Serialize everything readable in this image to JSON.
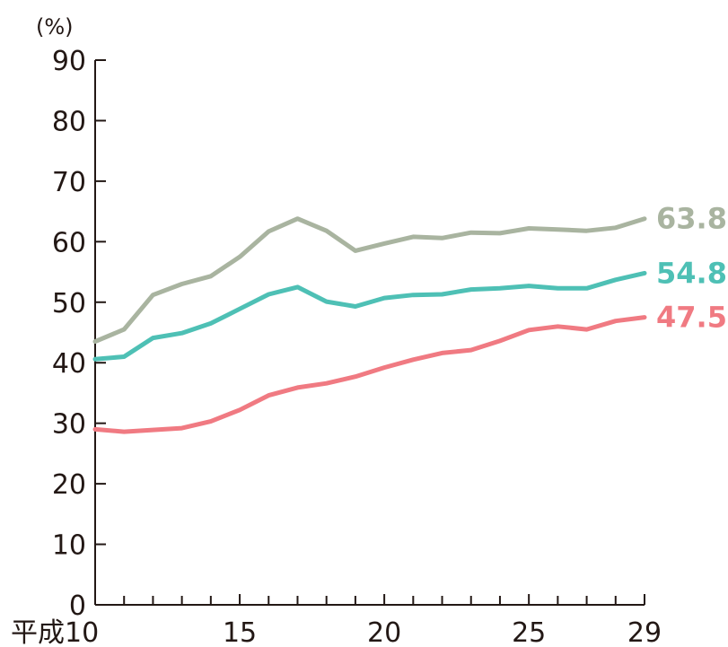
{
  "chart_data": {
    "type": "line",
    "ylabel": "(%)",
    "xlabel": "",
    "title": "",
    "ylim": [
      0,
      90
    ],
    "xlim": [
      10,
      29
    ],
    "yticks": [
      0,
      10,
      20,
      30,
      40,
      50,
      60,
      70,
      80,
      90
    ],
    "xtick_labels": [
      {
        "x": 10,
        "label": "平成10"
      },
      {
        "x": 15,
        "label": "15"
      },
      {
        "x": 20,
        "label": "20"
      },
      {
        "x": 25,
        "label": "25"
      },
      {
        "x": 29,
        "label": "29"
      }
    ],
    "x": [
      10,
      11,
      12,
      13,
      14,
      15,
      16,
      17,
      18,
      19,
      20,
      21,
      22,
      23,
      24,
      25,
      26,
      27,
      28,
      29
    ],
    "grid": false,
    "series": [
      {
        "color": "#a9b4a0",
        "values": [
          43.5,
          45.5,
          51.2,
          53.0,
          54.3,
          57.5,
          61.7,
          63.8,
          61.8,
          58.5,
          59.7,
          60.8,
          60.6,
          61.5,
          61.4,
          62.2,
          62.0,
          61.8,
          62.3,
          63.8
        ],
        "end_label": "63.8"
      },
      {
        "color": "#4ec0b5",
        "values": [
          40.6,
          41.0,
          44.1,
          44.9,
          46.5,
          48.9,
          51.3,
          52.5,
          50.1,
          49.3,
          50.7,
          51.2,
          51.3,
          52.1,
          52.3,
          52.7,
          52.3,
          52.3,
          53.7,
          54.8
        ],
        "end_label": "54.8"
      },
      {
        "color": "#f07a82",
        "values": [
          29.0,
          28.6,
          28.9,
          29.2,
          30.3,
          32.2,
          34.6,
          35.9,
          36.6,
          37.7,
          39.2,
          40.5,
          41.6,
          42.1,
          43.6,
          45.4,
          46.0,
          45.5,
          46.9,
          47.5
        ],
        "end_label": "47.5"
      }
    ]
  }
}
